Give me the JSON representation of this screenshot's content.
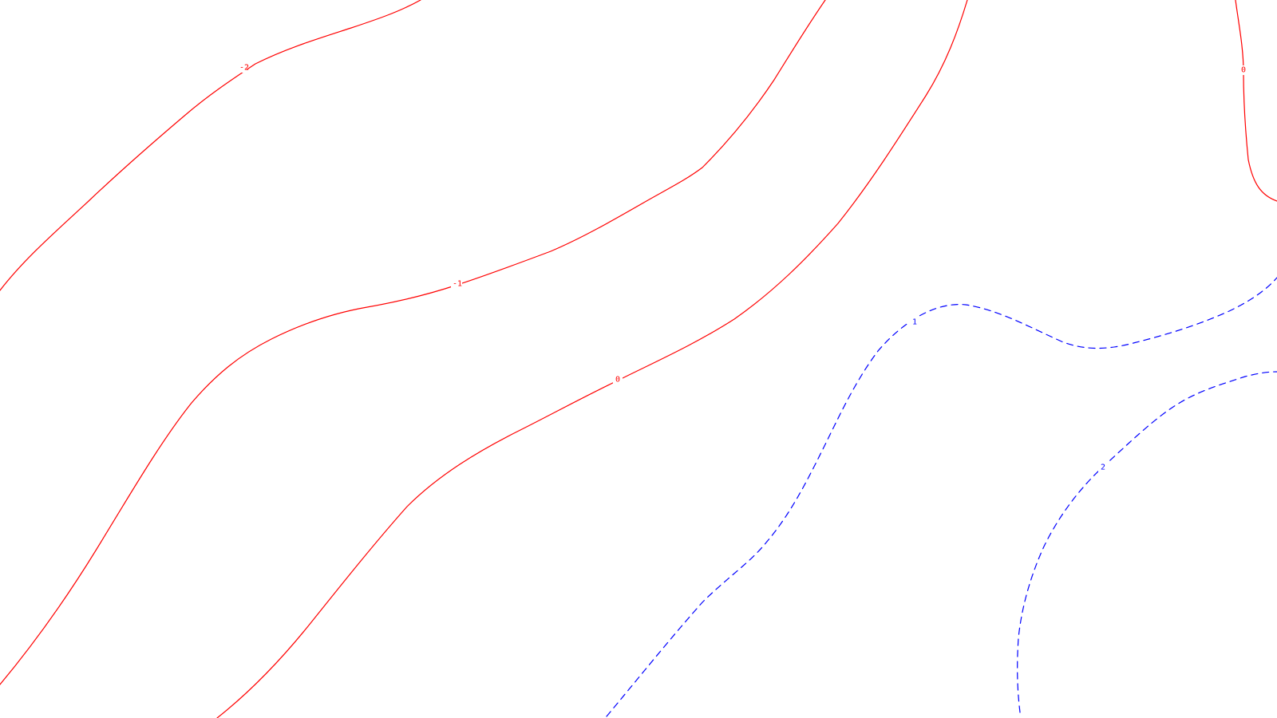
{
  "map": {
    "colors": {
      "background": "#ffffff",
      "negative_and_zero": "#ff0000",
      "positive": "#0000ff"
    },
    "contours": [
      {
        "id": "contour-minus-2",
        "level": -2,
        "label": "-2",
        "style": "solid",
        "color": "#ff0000"
      },
      {
        "id": "contour-minus-1",
        "level": -1,
        "label": "-1",
        "style": "solid",
        "color": "#ff0000"
      },
      {
        "id": "contour-zero-main",
        "level": 0,
        "label": "0",
        "style": "solid",
        "color": "#ff0000"
      },
      {
        "id": "contour-zero-corner",
        "level": 0,
        "label": "0",
        "style": "solid",
        "color": "#ff0000"
      },
      {
        "id": "contour-plus-1",
        "level": 1,
        "label": "1",
        "style": "dashed",
        "color": "#0000ff"
      },
      {
        "id": "contour-plus-2",
        "level": 2,
        "label": "2",
        "style": "dashed",
        "color": "#0000ff"
      }
    ]
  }
}
